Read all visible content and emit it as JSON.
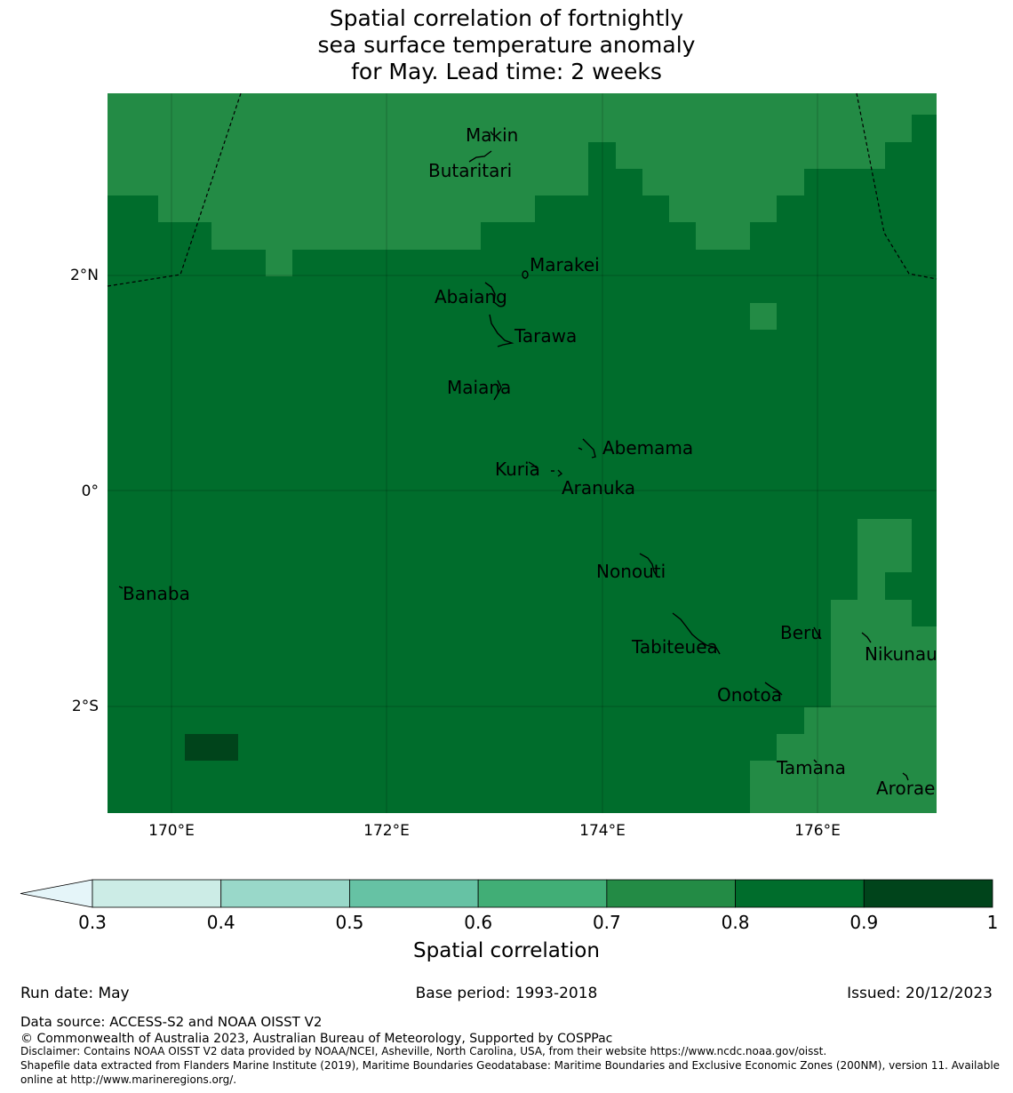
{
  "title": {
    "line1": "Spatial correlation of fortnightly",
    "line2": "sea surface temperature anomaly",
    "line3": "for May. Lead time: 2 weeks"
  },
  "axes": {
    "x_ticks": [
      "170°E",
      "172°E",
      "174°E",
      "176°E"
    ],
    "y_ticks": [
      "2°N",
      "0°",
      "2°S"
    ]
  },
  "islands": [
    {
      "name": "Makin"
    },
    {
      "name": "Butaritari"
    },
    {
      "name": "Marakei"
    },
    {
      "name": "Abaiang"
    },
    {
      "name": "Tarawa"
    },
    {
      "name": "Maiana"
    },
    {
      "name": "Abemama"
    },
    {
      "name": "Kuria"
    },
    {
      "name": "Aranuka"
    },
    {
      "name": "Nonouti"
    },
    {
      "name": "Banaba"
    },
    {
      "name": "Beru"
    },
    {
      "name": "Tabiteuea"
    },
    {
      "name": "Nikunau"
    },
    {
      "name": "Onotoa"
    },
    {
      "name": "Tamana"
    },
    {
      "name": "Arorae"
    }
  ],
  "colorbar": {
    "ticks": [
      "0.3",
      "0.4",
      "0.5",
      "0.6",
      "0.7",
      "0.8",
      "0.9",
      "1"
    ],
    "colors": [
      "#e5f5f9",
      "#ccece6",
      "#99d8c9",
      "#66c2a4",
      "#41ae76",
      "#238b45",
      "#006d2c",
      "#00441b"
    ],
    "label": "Spatial correlation"
  },
  "footer": {
    "run_date": "Run date: May",
    "base_period": "Base period: 1993-2018",
    "issued": "Issued: 20/12/2023",
    "data_source": "Data source: ACCESS-S2 and NOAA OISST V2",
    "copyright": "© Commonwealth of Australia 2023, Australian Bureau of Meteorology, Supported by COSPPac",
    "disclaimer": "Disclaimer: Contains NOAA OISST V2 data provided by NOAA/NCEI, Asheville, North Carolina, USA, from their website https://www.ncdc.noaa.gov/oisst.",
    "shapefile1": "Shapefile data extracted from Flanders Marine Institute (2019), Maritime Boundaries Geodatabase: Maritime Boundaries and Exclusive Economic Zones (200NM), version 11. Available",
    "shapefile2": "online at http://www.marineregions.org/."
  }
}
